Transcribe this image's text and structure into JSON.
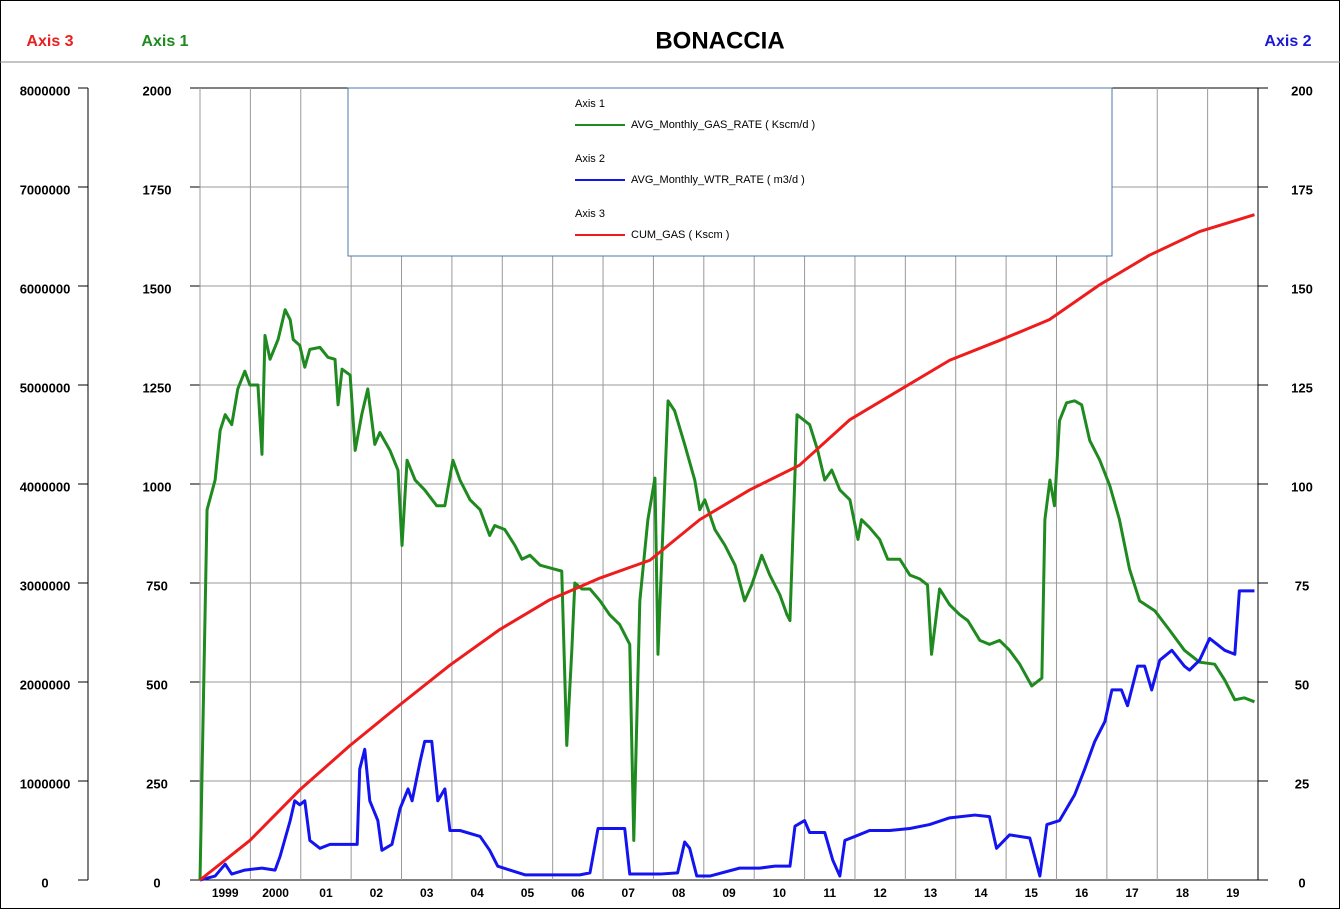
{
  "chart_data": {
    "type": "line",
    "title": "BONACCIA",
    "xlim": [
      1999,
      2020
    ],
    "xticks": [
      {
        "value": 1999,
        "label": "1999"
      },
      {
        "value": 2000,
        "label": "2000"
      },
      {
        "value": 2001,
        "label": "01"
      },
      {
        "value": 2002,
        "label": "02"
      },
      {
        "value": 2003,
        "label": "03"
      },
      {
        "value": 2004,
        "label": "04"
      },
      {
        "value": 2005,
        "label": "05"
      },
      {
        "value": 2006,
        "label": "06"
      },
      {
        "value": 2007,
        "label": "07"
      },
      {
        "value": 2008,
        "label": "08"
      },
      {
        "value": 2009,
        "label": "09"
      },
      {
        "value": 2010,
        "label": "10"
      },
      {
        "value": 2011,
        "label": "11"
      },
      {
        "value": 2012,
        "label": "12"
      },
      {
        "value": 2013,
        "label": "13"
      },
      {
        "value": 2014,
        "label": "14"
      },
      {
        "value": 2015,
        "label": "15"
      },
      {
        "value": 2016,
        "label": "16"
      },
      {
        "value": 2017,
        "label": "17"
      },
      {
        "value": 2018,
        "label": "18"
      },
      {
        "value": 2019,
        "label": "19"
      }
    ],
    "grid": true,
    "axes": {
      "y3": {
        "label": "Axis 3",
        "color": "#e8201f",
        "ylim": [
          0,
          8000000
        ],
        "yticks": [
          0,
          1000000,
          2000000,
          3000000,
          4000000,
          5000000,
          6000000,
          7000000,
          8000000
        ]
      },
      "y": {
        "label": "Axis 1",
        "color": "#1f8a1f",
        "ylim": [
          0,
          2000
        ],
        "yticks": [
          0,
          250,
          500,
          750,
          1000,
          1250,
          1500,
          1750,
          2000
        ]
      },
      "y2": {
        "label": "Axis 2",
        "color": "#1a1ad6",
        "ylim": [
          0,
          200
        ],
        "yticks": [
          0,
          25,
          50,
          75,
          100,
          125,
          150,
          175,
          200
        ]
      }
    },
    "series": [
      {
        "name": "AVG_Monthly_GAS_RATE ( Kscm/d )",
        "color": "#1f8a1f",
        "axis": "y",
        "x": [
          1999,
          1999.14,
          1999.3,
          1999.4,
          1999.5,
          1999.63,
          1999.75,
          1999.89,
          1999.99,
          2000.15,
          2000.23,
          2000.29,
          2000.39,
          2000.55,
          2000.69,
          2000.79,
          2000.85,
          2000.98,
          2001.08,
          2001.18,
          2001.38,
          2001.54,
          2001.68,
          2001.74,
          2001.82,
          2001.98,
          2002.08,
          2002.21,
          2002.33,
          2002.47,
          2002.57,
          2002.77,
          2002.93,
          2003.01,
          2003.11,
          2003.27,
          2003.46,
          2003.7,
          2003.86,
          2004.02,
          2004.16,
          2004.36,
          2004.56,
          2004.75,
          2004.85,
          2005.05,
          2005.25,
          2005.39,
          2005.55,
          2005.75,
          2006.04,
          2006.18,
          2006.28,
          2006.38,
          2006.44,
          2006.58,
          2006.74,
          2006.94,
          2007.13,
          2007.33,
          2007.53,
          2007.61,
          2007.73,
          2007.89,
          2008.03,
          2008.09,
          2008.29,
          2008.42,
          2008.62,
          2008.82,
          2008.92,
          2009.02,
          2009.22,
          2009.42,
          2009.62,
          2009.81,
          2009.95,
          2010.15,
          2010.31,
          2010.51,
          2010.65,
          2010.71,
          2010.85,
          2011.0,
          2011.1,
          2011.26,
          2011.4,
          2011.54,
          2011.7,
          2011.9,
          2012.06,
          2012.13,
          2012.29,
          2012.49,
          2012.65,
          2012.89,
          2013.09,
          2013.29,
          2013.44,
          2013.52,
          2013.68,
          2013.88,
          2014.08,
          2014.24,
          2014.48,
          2014.67,
          2014.87,
          2015.07,
          2015.27,
          2015.51,
          2015.71,
          2015.77,
          2015.87,
          2015.96,
          2016.06,
          2016.2,
          2016.36,
          2016.5,
          2016.66,
          2016.86,
          2017.06,
          2017.25,
          2017.45,
          2017.65,
          2017.95,
          2018.25,
          2018.54,
          2018.84,
          2019.14,
          2019.34,
          2019.54,
          2019.73,
          2019.93
        ],
        "values": [
          0,
          935,
          1010,
          1135,
          1175,
          1150,
          1240,
          1285,
          1250,
          1250,
          1075,
          1375,
          1315,
          1365,
          1440,
          1415,
          1365,
          1350,
          1295,
          1340,
          1345,
          1320,
          1315,
          1200,
          1290,
          1275,
          1085,
          1175,
          1240,
          1100,
          1130,
          1085,
          1035,
          845,
          1060,
          1010,
          985,
          945,
          945,
          1060,
          1010,
          960,
          935,
          870,
          895,
          885,
          845,
          810,
          820,
          795,
          785,
          780,
          340,
          580,
          750,
          735,
          735,
          705,
          670,
          645,
          595,
          100,
          705,
          910,
          1015,
          570,
          1210,
          1185,
          1100,
          1010,
          935,
          960,
          885,
          845,
          795,
          705,
          745,
          820,
          770,
          720,
          670,
          655,
          1175,
          1160,
          1150,
          1085,
          1010,
          1035,
          985,
          960,
          860,
          910,
          890,
          860,
          810,
          810,
          770,
          760,
          745,
          570,
          735,
          695,
          670,
          655,
          605,
          595,
          605,
          580,
          545,
          490,
          510,
          910,
          1010,
          945,
          1160,
          1205,
          1210,
          1200,
          1110,
          1060,
          995,
          910,
          785,
          705,
          680,
          630,
          580,
          550,
          545,
          505,
          455,
          460,
          450
        ]
      },
      {
        "name": "AVG_Monthly_WTR_RATE ( m3/d )",
        "color": "#1414f0",
        "axis": "y2",
        "x": [
          1999,
          1999.3,
          1999.5,
          1999.63,
          1999.89,
          2000.23,
          2000.49,
          2000.59,
          2000.79,
          2000.88,
          2000.98,
          2001.08,
          2001.18,
          2001.38,
          2001.58,
          2001.98,
          2002.12,
          2002.17,
          2002.27,
          2002.37,
          2002.53,
          2002.61,
          2002.81,
          2002.97,
          2003.13,
          2003.21,
          2003.37,
          2003.46,
          2003.6,
          2003.72,
          2003.86,
          2003.96,
          2004.16,
          2004.56,
          2004.75,
          2004.91,
          2005.15,
          2005.45,
          2006.14,
          2006.54,
          2006.74,
          2006.9,
          2007.43,
          2007.53,
          2008.13,
          2008.48,
          2008.62,
          2008.72,
          2008.86,
          2009.12,
          2009.71,
          2010.11,
          2010.41,
          2010.71,
          2010.81,
          2011.0,
          2011.1,
          2011.4,
          2011.56,
          2011.7,
          2011.8,
          2012.0,
          2012.29,
          2012.69,
          2013.09,
          2013.48,
          2013.88,
          2014.38,
          2014.67,
          2014.81,
          2015.07,
          2015.47,
          2015.67,
          2015.81,
          2016.06,
          2016.36,
          2016.56,
          2016.76,
          2016.96,
          2017.1,
          2017.29,
          2017.41,
          2017.61,
          2017.75,
          2017.89,
          2018.05,
          2018.29,
          2018.54,
          2018.64,
          2018.84,
          2019.04,
          2019.34,
          2019.54,
          2019.63,
          2019.93
        ],
        "values": [
          0,
          1,
          4,
          1.5,
          2.5,
          3,
          2.5,
          6,
          15,
          20,
          19,
          20,
          10,
          8,
          9,
          9,
          9,
          28,
          33,
          20,
          15,
          7.5,
          9,
          18,
          23,
          20,
          30,
          35,
          35,
          20,
          23,
          12.5,
          12.5,
          11,
          7.5,
          3.5,
          2.5,
          1.3,
          1.3,
          1.3,
          1.8,
          13,
          13,
          1.5,
          1.5,
          1.8,
          9.6,
          8,
          1,
          1,
          3,
          3,
          3.5,
          3.5,
          13.6,
          15,
          12,
          12,
          5,
          1,
          10,
          11,
          12.5,
          12.5,
          13,
          14,
          15.7,
          16.4,
          16,
          8,
          11.4,
          10.6,
          1,
          14,
          15,
          21.5,
          28,
          35,
          40,
          48,
          48,
          44,
          54,
          54,
          48,
          55.5,
          58,
          54,
          53,
          55.5,
          61,
          58,
          57,
          73,
          73
        ]
      },
      {
        "name": "CUM_GAS ( Kscm )",
        "color": "#ee1c1c",
        "axis": "y3",
        "x": [
          1999,
          1999.99,
          2000.98,
          2001.98,
          2002.97,
          2003.96,
          2004.95,
          2005.94,
          2006.94,
          2007.93,
          2008.92,
          2009.91,
          2010.9,
          2011.9,
          2012.89,
          2013.88,
          2014.87,
          2015.86,
          2016.85,
          2017.84,
          2018.84,
          2019.93
        ],
        "values": [
          0,
          400000,
          910000,
          1360000,
          1770000,
          2170000,
          2530000,
          2830000,
          3050000,
          3230000,
          3640000,
          3940000,
          4190000,
          4650000,
          4950000,
          5250000,
          5450000,
          5660000,
          6010000,
          6310000,
          6550000,
          6720000
        ]
      }
    ]
  }
}
